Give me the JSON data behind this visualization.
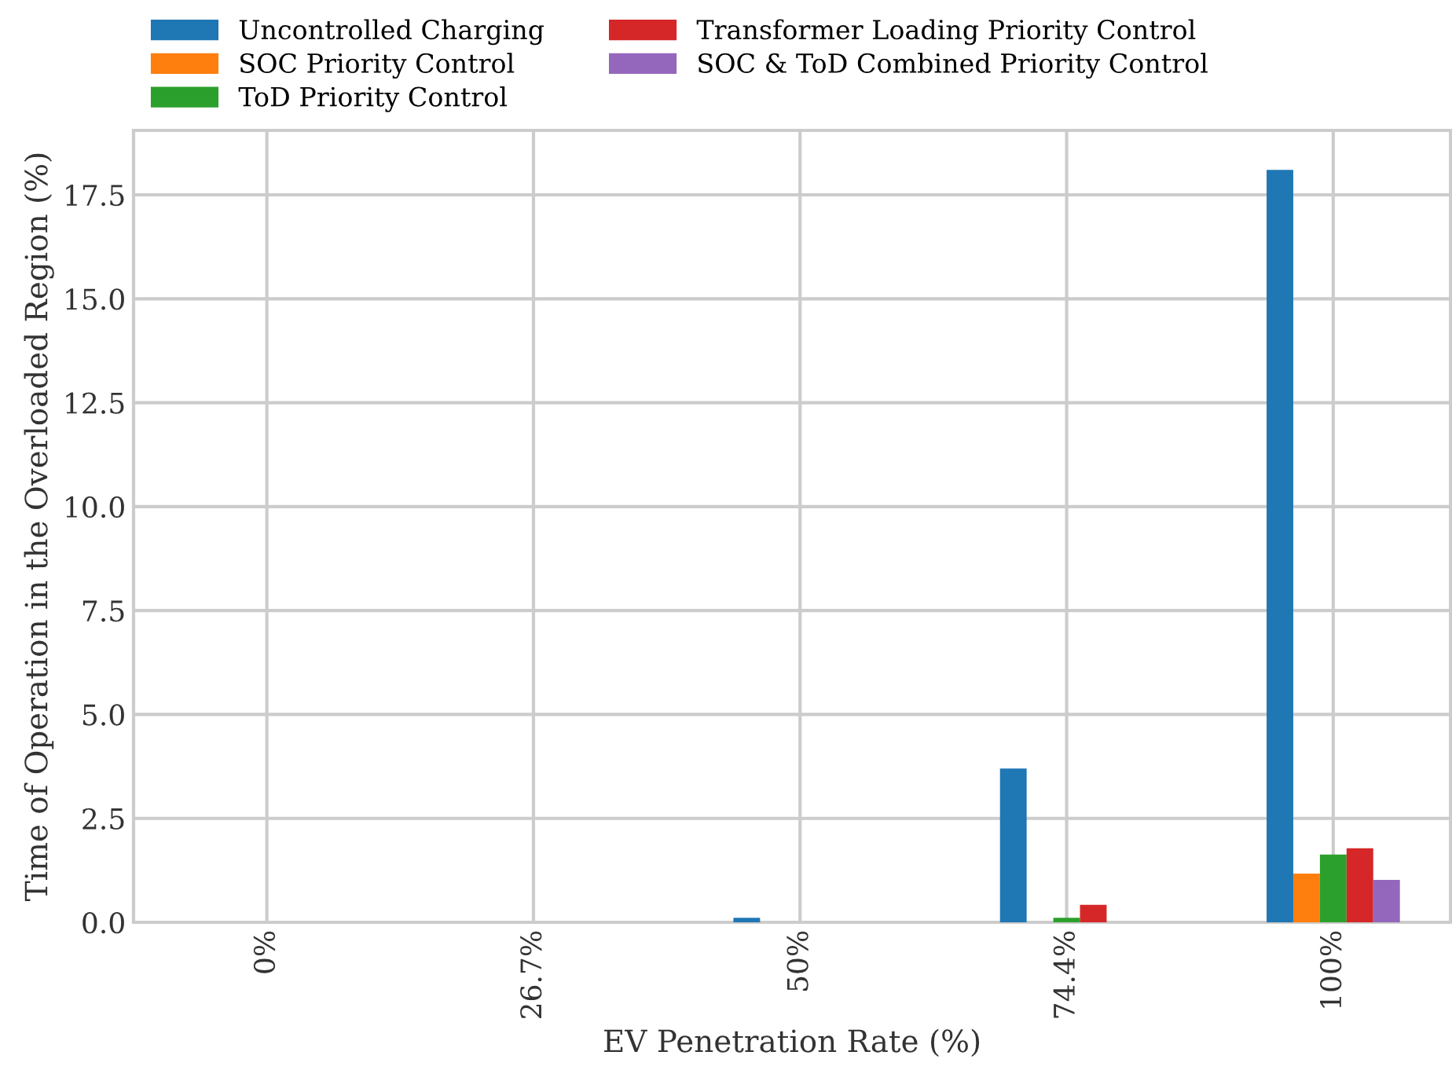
{
  "chart_data": {
    "type": "bar",
    "xlabel": "EV Penetration Rate (%)",
    "ylabel": "Time of Operation in the Overloaded Region (%)",
    "categories": [
      "0%",
      "26.7%",
      "50%",
      "74.4%",
      "100%"
    ],
    "series": [
      {
        "name": "Uncontrolled Charging",
        "color": "#1f77b4",
        "values": [
          0,
          0,
          0.11,
          3.7,
          18.1
        ]
      },
      {
        "name": "SOC Priority Control",
        "color": "#ff7f0e",
        "values": [
          0,
          0,
          0,
          0,
          1.17
        ]
      },
      {
        "name": "ToD Priority Control",
        "color": "#2ca02c",
        "values": [
          0,
          0,
          0,
          0.11,
          1.63
        ]
      },
      {
        "name": "Transformer Loading Priority Control",
        "color": "#d62728",
        "values": [
          0,
          0,
          0,
          0.42,
          1.78
        ]
      },
      {
        "name": "SOC & ToD Combined Priority Control",
        "color": "#9467bd",
        "values": [
          0,
          0,
          0,
          0,
          1.02
        ]
      }
    ],
    "ylim": [
      0,
      19.05
    ],
    "yticks": [
      {
        "value": 0,
        "label": "0.0"
      },
      {
        "value": 2.5,
        "label": "2.5"
      },
      {
        "value": 5,
        "label": "5.0"
      },
      {
        "value": 7.5,
        "label": "7.5"
      },
      {
        "value": 10,
        "label": "10.0"
      },
      {
        "value": 12.5,
        "label": "12.5"
      },
      {
        "value": 15,
        "label": "15.0"
      },
      {
        "value": 17.5,
        "label": "17.5"
      }
    ],
    "grid": true,
    "legend": "top left"
  }
}
